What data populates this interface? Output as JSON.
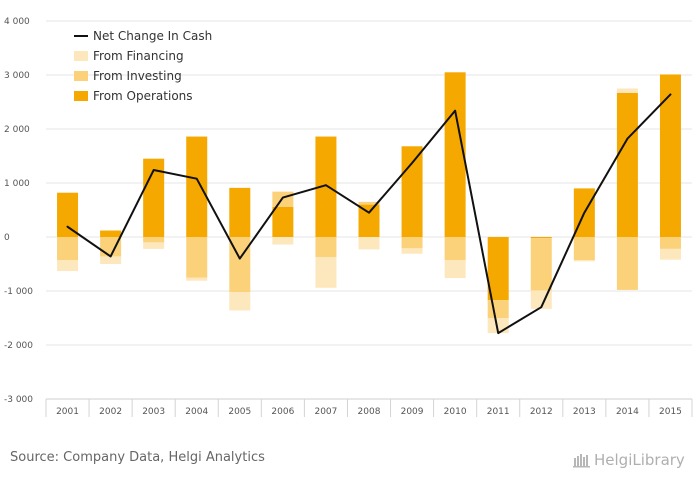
{
  "chart_data": {
    "type": "bar",
    "categories": [
      "2001",
      "2002",
      "2003",
      "2004",
      "2005",
      "2006",
      "2007",
      "2008",
      "2009",
      "2010",
      "2011",
      "2012",
      "2013",
      "2014",
      "2015"
    ],
    "y_ticks": [
      "4 000",
      "3 000",
      "2 000",
      "1 000",
      "0",
      "-1 000",
      "-2 000",
      "-3 000"
    ],
    "ylim": [
      -3000,
      4000
    ],
    "series": [
      {
        "name": "From Operations",
        "color": "#F5A800",
        "values": [
          820,
          120,
          1450,
          1860,
          910,
          560,
          1860,
          600,
          1680,
          3050,
          -1170,
          -20,
          900,
          2670,
          3010
        ]
      },
      {
        "name": "From Investing",
        "color": "#FBD17A",
        "values": [
          -430,
          -360,
          -100,
          -750,
          -1020,
          280,
          -370,
          50,
          -210,
          -430,
          -330,
          -970,
          -430,
          -980,
          -220
        ]
      },
      {
        "name": "From Financing",
        "color": "#FDE7BD",
        "values": [
          -200,
          -140,
          -120,
          -60,
          -340,
          -140,
          -570,
          -230,
          -100,
          -330,
          -280,
          -340,
          -20,
          80,
          -200
        ]
      }
    ],
    "line_series": {
      "name": "Net Change In Cash",
      "color": "#111111",
      "values": [
        190,
        -360,
        1240,
        1080,
        -400,
        730,
        960,
        450,
        1370,
        2340,
        -1780,
        -1300,
        450,
        1820,
        2640
      ]
    },
    "legend_order": [
      "Net Change In Cash",
      "From Financing",
      "From Investing",
      "From Operations"
    ],
    "legend_position": "top-left",
    "grid": true
  },
  "footer": {
    "source": "Source: Company Data, Helgi Analytics",
    "brand": "HelgiLibrary"
  }
}
